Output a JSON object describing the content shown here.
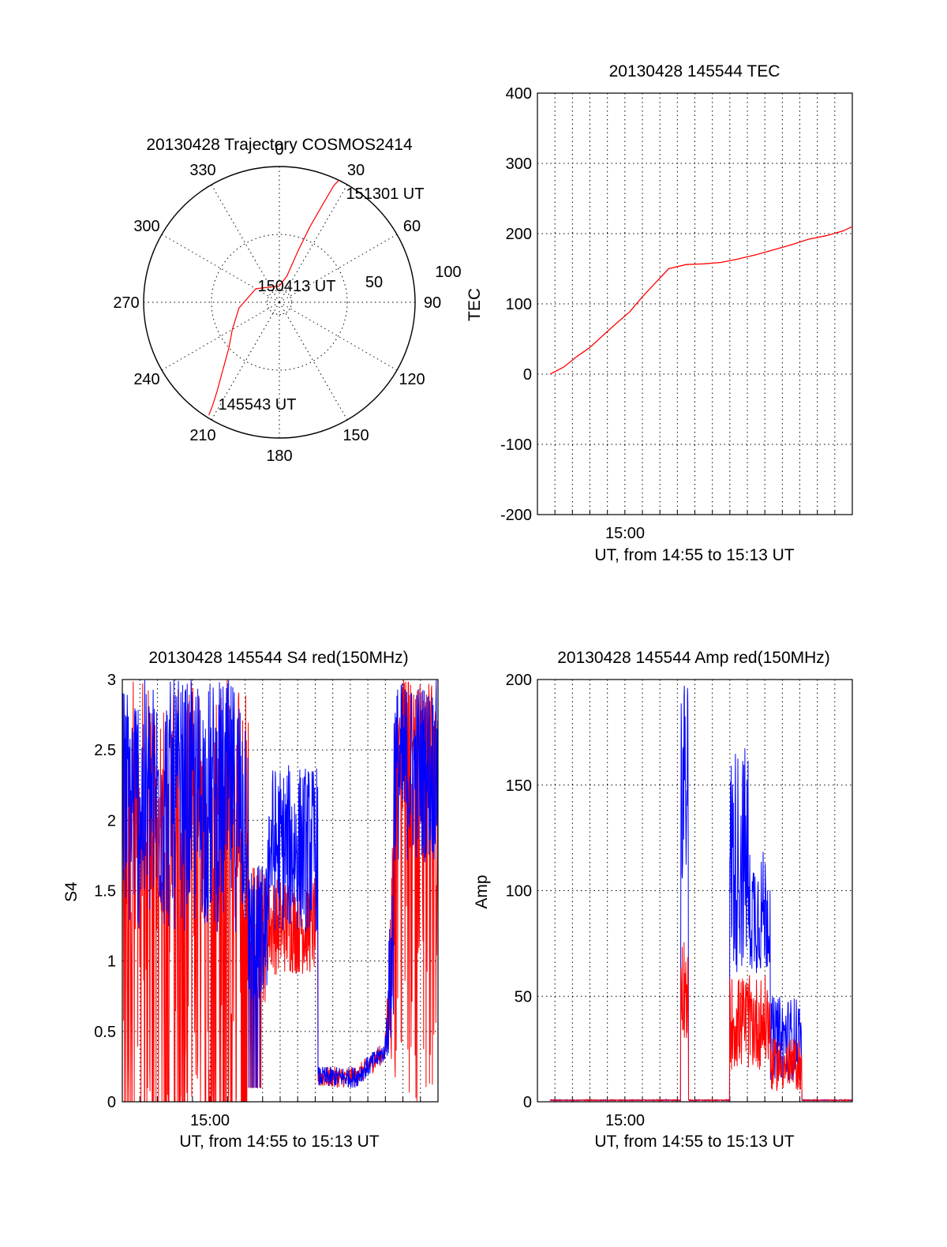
{
  "chart_data": [
    {
      "type": "polar",
      "title": "20130428 Trajectory COSMOS2414",
      "azimuth_labels": [
        "0",
        "30",
        "60",
        "90",
        "120",
        "150",
        "180",
        "210",
        "240",
        "270",
        "300",
        "330"
      ],
      "radial_labels": [
        "50",
        "100"
      ],
      "elev_rings": [
        50,
        100
      ],
      "series": [
        {
          "color": "#ff0000",
          "points": [
            [
              212,
              98
            ],
            [
              213,
              90
            ],
            [
              215,
              80
            ],
            [
              218,
              70
            ],
            [
              222,
              60
            ],
            [
              228,
              50
            ],
            [
              240,
              40
            ],
            [
              262,
              30
            ],
            [
              300,
              20
            ],
            [
              360,
              12
            ],
            [
              16,
              20
            ],
            [
              20,
              40
            ],
            [
              22,
              60
            ],
            [
              24,
              80
            ],
            [
              25,
              95
            ],
            [
              26,
              100
            ]
          ]
        }
      ],
      "annotations": [
        {
          "text": "151301 UT",
          "az": 30,
          "r": 100
        },
        {
          "text": "150413 UT",
          "az": 270,
          "r": 8
        },
        {
          "text": "145543 UT",
          "az": 210,
          "r": 100
        }
      ]
    },
    {
      "type": "line",
      "title": "20130428 145544 TEC",
      "ylabel": "TEC",
      "xlabel": "UT, from 14:55 to 15:13 UT",
      "xlim": [
        "14:55:00",
        "15:13:00"
      ],
      "ylim": [
        -200,
        400
      ],
      "yticks": [
        "400",
        "300",
        "200",
        "100",
        "0",
        "-100",
        "-200"
      ],
      "xtick_label": "15:00",
      "series": [
        {
          "color": "#ff0000",
          "x": [
            "14:55:44",
            "14:56:30",
            "14:57:15",
            "14:58:00",
            "14:58:45",
            "14:59:30",
            "15:00:15",
            "15:01:00",
            "15:01:45",
            "15:02:30",
            "15:03:30",
            "15:04:30",
            "15:05:30",
            "15:06:30",
            "15:07:30",
            "15:08:30",
            "15:09:30",
            "15:10:30",
            "15:11:30",
            "15:12:30",
            "15:13:00"
          ],
          "y": [
            0,
            10,
            25,
            38,
            55,
            72,
            88,
            110,
            130,
            150,
            156,
            157,
            159,
            164,
            170,
            177,
            184,
            192,
            197,
            204,
            210
          ]
        }
      ]
    },
    {
      "type": "line",
      "title": "20130428 145544 S4 red(150MHz)",
      "ylabel": "S4",
      "xlabel": "UT, from 14:55 to 15:13 UT",
      "xlim": [
        "14:55:00",
        "15:13:00"
      ],
      "ylim": [
        0,
        3
      ],
      "yticks": [
        "3",
        "2.5",
        "2",
        "1.5",
        "1",
        "0.5",
        "0"
      ],
      "xtick_label": "15:00",
      "series": [
        {
          "color": "#0000ff",
          "name": "",
          "description_level": "noisy"
        },
        {
          "color": "#ff0000",
          "name": ""
        }
      ]
    },
    {
      "type": "line",
      "title": "20130428 145544 Amp red(150MHz)",
      "ylabel": "Amp",
      "xlabel": "UT, from 14:55 to 15:13 UT",
      "xlim": [
        "14:55:00",
        "15:13:00"
      ],
      "ylim": [
        0,
        200
      ],
      "yticks": [
        "200",
        "150",
        "100",
        "50",
        "0"
      ],
      "xtick_label": "15:00",
      "series": [
        {
          "color": "#0000ff"
        },
        {
          "color": "#ff0000"
        }
      ]
    }
  ]
}
